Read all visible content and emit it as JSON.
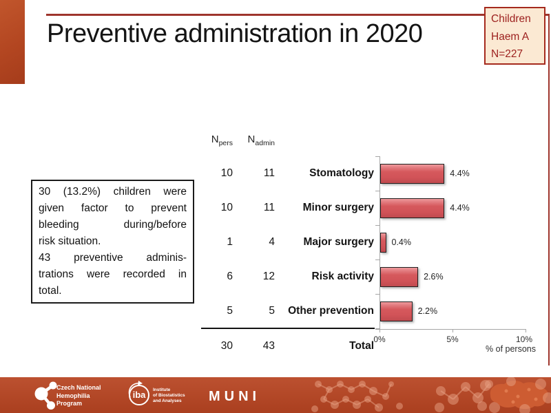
{
  "slide": {
    "title": "Preventive administration in 2020",
    "badge": {
      "lines": [
        "Children",
        "Haem A",
        "N=227"
      ]
    },
    "note": {
      "full_text": "30 (13.2%) children were given factor to prevent bleeding during/before risk situation. 43 preventive adminis-trations were recorded in total.",
      "lines": [
        "30 (13.2%) children were",
        "given factor to prevent",
        "bleeding during/before",
        "risk situation.",
        "43 preventive adminis-",
        "trations were recorded in",
        "total."
      ],
      "last_line_indexes": [
        3,
        6
      ]
    }
  },
  "chart_data": {
    "type": "bar",
    "orientation": "horizontal",
    "title": "",
    "xlabel": "% of persons",
    "xlim": [
      0,
      10
    ],
    "xticks": [
      "0%",
      "5%",
      "10%"
    ],
    "grid": false,
    "legend": false,
    "col_headers": {
      "n_pers": {
        "base": "N",
        "sub": "pers"
      },
      "n_admin": {
        "base": "N",
        "sub": "admin"
      }
    },
    "rows": [
      {
        "n_pers": 10,
        "n_admin": 11,
        "label": "Stomatology",
        "value": 4.4,
        "value_label": "4.4%"
      },
      {
        "n_pers": 10,
        "n_admin": 11,
        "label": "Minor surgery",
        "value": 4.4,
        "value_label": "4.4%"
      },
      {
        "n_pers": 1,
        "n_admin": 4,
        "label": "Major surgery",
        "value": 0.4,
        "value_label": "0.4%"
      },
      {
        "n_pers": 6,
        "n_admin": 12,
        "label": "Risk activity",
        "value": 2.6,
        "value_label": "2.6%"
      },
      {
        "n_pers": 5,
        "n_admin": 5,
        "label": "Other prevention",
        "value": 2.2,
        "value_label": "2.2%"
      }
    ],
    "total": {
      "n_pers": 30,
      "n_admin": 43,
      "label": "Total"
    }
  },
  "footer": {
    "cnhp": [
      "Czech National",
      "Hemophilia",
      "Program"
    ],
    "iba_abbr": "iba",
    "iba": [
      "Institute",
      "of Biostatistics",
      "and Analyses"
    ],
    "muni": "MUNI"
  },
  "colors": {
    "accent_block": "#b34621",
    "rule_red": "#9e352c",
    "badge_bg": "#fbe9d3",
    "badge_border": "#a5291d",
    "badge_text": "#9c1f1d",
    "bar_fill": "#d6595d",
    "bar_border": "#1f1f1f",
    "axis_gray": "#a6a6a6",
    "footer_bg": "#b5462a"
  }
}
